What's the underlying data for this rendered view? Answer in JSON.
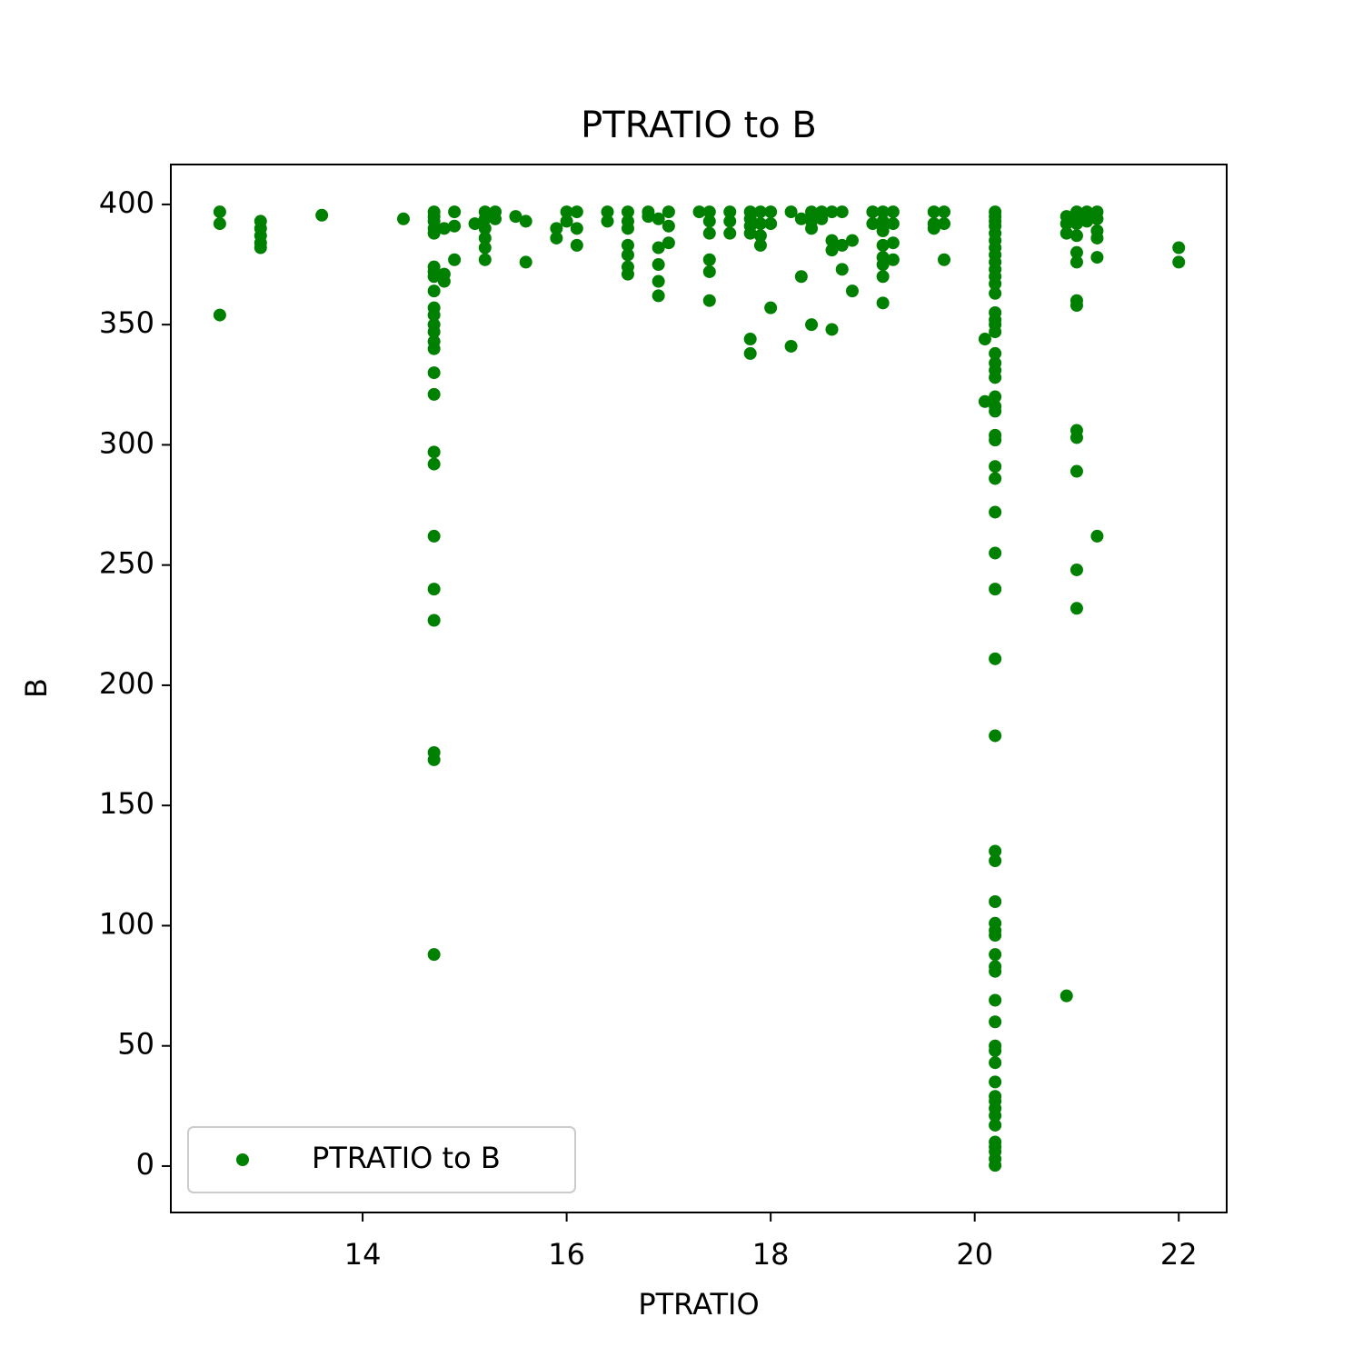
{
  "chart_data": {
    "type": "scatter",
    "title": "PTRATIO to B",
    "xlabel": "PTRATIO",
    "ylabel": "B",
    "xlim": [
      12.12,
      22.47
    ],
    "ylim": [
      -19.3,
      416.6
    ],
    "xticks": [
      14,
      16,
      18,
      20,
      22
    ],
    "yticks": [
      0,
      50,
      100,
      150,
      200,
      250,
      300,
      350,
      400
    ],
    "legend": "lower left",
    "grid": false,
    "series": [
      {
        "name": "PTRATIO to B",
        "color": "#008000",
        "x": [
          12.6,
          12.6,
          12.6,
          13.0,
          13.0,
          13.0,
          13.0,
          13.0,
          13.6,
          14.4,
          14.7,
          14.7,
          14.7,
          14.7,
          14.7,
          14.7,
          14.7,
          14.7,
          14.7,
          14.7,
          14.7,
          14.7,
          14.7,
          14.7,
          14.7,
          14.7,
          14.7,
          14.7,
          14.7,
          14.7,
          14.7,
          14.7,
          14.7,
          14.7,
          14.7,
          14.8,
          14.8,
          14.8,
          14.9,
          14.9,
          14.9,
          15.1,
          15.2,
          15.2,
          15.2,
          15.2,
          15.2,
          15.2,
          15.3,
          15.3,
          15.5,
          15.6,
          15.6,
          15.9,
          15.9,
          16.0,
          16.0,
          16.1,
          16.1,
          16.1,
          16.4,
          16.4,
          16.6,
          16.6,
          16.6,
          16.6,
          16.6,
          16.6,
          16.6,
          16.8,
          16.8,
          16.9,
          16.9,
          16.9,
          16.9,
          16.9,
          17.0,
          17.0,
          17.0,
          17.3,
          17.4,
          17.4,
          17.4,
          17.4,
          17.4,
          17.4,
          17.6,
          17.6,
          17.6,
          17.8,
          17.8,
          17.8,
          17.8,
          17.8,
          17.8,
          17.9,
          17.9,
          17.9,
          17.9,
          18.0,
          18.0,
          18.0,
          18.2,
          18.2,
          18.3,
          18.3,
          18.4,
          18.4,
          18.4,
          18.4,
          18.5,
          18.5,
          18.6,
          18.6,
          18.6,
          18.6,
          18.7,
          18.7,
          18.7,
          18.8,
          18.8,
          19.0,
          19.0,
          19.1,
          19.1,
          19.1,
          19.1,
          19.1,
          19.1,
          19.1,
          19.1,
          19.2,
          19.2,
          19.2,
          19.2,
          19.6,
          19.6,
          19.6,
          19.7,
          19.7,
          19.7,
          20.1,
          20.1,
          20.2,
          20.2,
          20.2,
          20.2,
          20.2,
          20.2,
          20.2,
          20.2,
          20.2,
          20.2,
          20.2,
          20.2,
          20.2,
          20.2,
          20.2,
          20.2,
          20.2,
          20.2,
          20.2,
          20.2,
          20.2,
          20.2,
          20.2,
          20.2,
          20.2,
          20.2,
          20.2,
          20.2,
          20.2,
          20.2,
          20.2,
          20.2,
          20.2,
          20.2,
          20.2,
          20.2,
          20.2,
          20.2,
          20.2,
          20.2,
          20.2,
          20.2,
          20.2,
          20.2,
          20.2,
          20.2,
          20.2,
          20.2,
          20.2,
          20.2,
          20.2,
          20.2,
          20.2,
          20.2,
          20.2,
          20.2,
          20.2,
          20.2,
          20.9,
          20.9,
          20.9,
          20.9,
          21.0,
          21.0,
          21.0,
          21.0,
          21.0,
          21.0,
          21.0,
          21.0,
          21.0,
          21.0,
          21.0,
          21.0,
          21.0,
          21.1,
          21.1,
          21.2,
          21.2,
          21.2,
          21.2,
          21.2,
          21.2,
          22.0,
          22.0
        ],
        "y": [
          396.9,
          392,
          354,
          393,
          390,
          387,
          384,
          382,
          395.5,
          394,
          396.9,
          395,
          393,
          390,
          388,
          374,
          372,
          370,
          364,
          357,
          354,
          350,
          347,
          343,
          340,
          330,
          321,
          297,
          292,
          262,
          240,
          227,
          172,
          169,
          88,
          371,
          368,
          390,
          396.9,
          391,
          377,
          392,
          396.9,
          394,
          390,
          386,
          382,
          377,
          396.9,
          394,
          395,
          393,
          376,
          390,
          386,
          396.9,
          393,
          396.9,
          390,
          383,
          396.9,
          393,
          396.9,
          393,
          390,
          383,
          379,
          374,
          371,
          396.9,
          395,
          394,
          382,
          375,
          368,
          362,
          396.9,
          391,
          384,
          396.9,
          396.9,
          393,
          388,
          377,
          372,
          360,
          396.9,
          393,
          388,
          396.9,
          394,
          391,
          388,
          344,
          338,
          396.9,
          392,
          387,
          383,
          396.9,
          392,
          357,
          396.9,
          341,
          394,
          370,
          396.9,
          393,
          390,
          350,
          396.9,
          394,
          396.9,
          385,
          381,
          348,
          396.9,
          383,
          373,
          385,
          364,
          396.9,
          392,
          396.9,
          393,
          389,
          383,
          378,
          375,
          370,
          359,
          396.9,
          392,
          384,
          377,
          396.9,
          392,
          390,
          396.9,
          392,
          377,
          344,
          318,
          396.9,
          395,
          393,
          391,
          388,
          385,
          382,
          379,
          376,
          373,
          370,
          367,
          363,
          355,
          352,
          350,
          347,
          338,
          334,
          331,
          328,
          320,
          316,
          314,
          304,
          302,
          291,
          286,
          272,
          255,
          240,
          211,
          179,
          131,
          127,
          110,
          101,
          98,
          96,
          88,
          83,
          81,
          69,
          60,
          50,
          48,
          43,
          35,
          29,
          27,
          24,
          21,
          17,
          10,
          8,
          6,
          3,
          0.3,
          395,
          392,
          388,
          70.8,
          396.9,
          395,
          392,
          387,
          380,
          376,
          360,
          358,
          306,
          303,
          289,
          248,
          232,
          396.9,
          393,
          396.9,
          394,
          389,
          386,
          378,
          262,
          382,
          376
        ]
      }
    ]
  }
}
